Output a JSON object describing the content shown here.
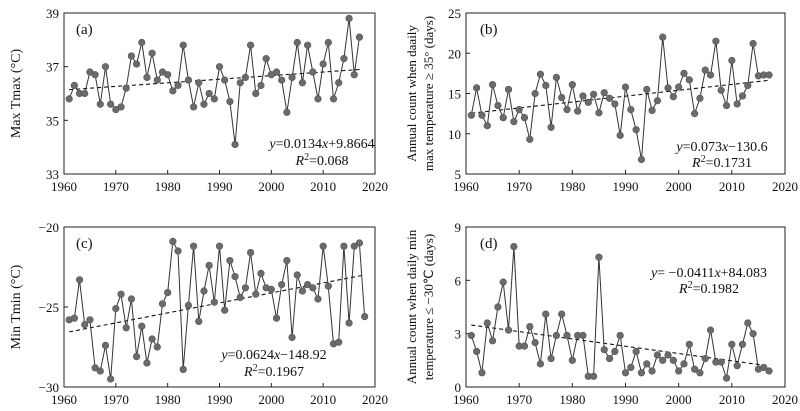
{
  "chart_data": [
    {
      "type": "line",
      "panel": "(a)",
      "ylabel": "Max Tmax (°C)",
      "xlim": [
        1960,
        2020
      ],
      "ylim": [
        33,
        39
      ],
      "xticks": [
        1960,
        1970,
        1980,
        1990,
        2000,
        2010,
        2020
      ],
      "yticks": [
        33,
        35,
        37,
        39
      ],
      "x": [
        1961,
        1962,
        1963,
        1964,
        1965,
        1966,
        1967,
        1968,
        1969,
        1970,
        1971,
        1972,
        1973,
        1974,
        1975,
        1976,
        1977,
        1978,
        1979,
        1980,
        1981,
        1982,
        1983,
        1984,
        1985,
        1986,
        1987,
        1988,
        1989,
        1990,
        1991,
        1992,
        1993,
        1994,
        1995,
        1996,
        1997,
        1998,
        1999,
        2000,
        2001,
        2002,
        2003,
        2004,
        2005,
        2006,
        2007,
        2008,
        2009,
        2010,
        2011,
        2012,
        2013,
        2014,
        2015,
        2016,
        2017
      ],
      "y": [
        35.8,
        36.3,
        36.0,
        36.0,
        36.8,
        36.7,
        35.6,
        37.0,
        35.6,
        35.4,
        35.5,
        36.2,
        37.4,
        37.1,
        37.9,
        36.6,
        37.5,
        36.5,
        36.8,
        36.7,
        36.1,
        36.3,
        37.8,
        36.5,
        35.5,
        36.4,
        35.6,
        36.0,
        35.8,
        37.0,
        36.5,
        35.7,
        34.1,
        36.4,
        36.6,
        37.8,
        36.0,
        36.3,
        37.3,
        36.7,
        36.8,
        36.5,
        35.3,
        36.6,
        37.9,
        36.4,
        37.8,
        36.8,
        35.8,
        37.1,
        37.9,
        35.8,
        36.4,
        37.3,
        38.8,
        36.7,
        38.1
      ],
      "trend": {
        "slope": 0.0134,
        "intercept": 9.8664
      },
      "equation_text": "y=0.0134x+9.8664",
      "r2_text": "R²=0.068"
    },
    {
      "type": "line",
      "panel": "(b)",
      "ylabel_line1": "Annual count when daaily",
      "ylabel_line2": "max temperature ≥ 35° (days)",
      "xlim": [
        1960,
        2020
      ],
      "ylim": [
        5,
        25
      ],
      "xticks": [
        1960,
        1970,
        1980,
        1990,
        2000,
        2010,
        2020
      ],
      "yticks": [
        5,
        10,
        15,
        20,
        25
      ],
      "x": [
        1961,
        1962,
        1963,
        1964,
        1965,
        1966,
        1967,
        1968,
        1969,
        1970,
        1971,
        1972,
        1973,
        1974,
        1975,
        1976,
        1977,
        1978,
        1979,
        1980,
        1981,
        1982,
        1983,
        1984,
        1985,
        1986,
        1987,
        1988,
        1989,
        1990,
        1991,
        1992,
        1993,
        1994,
        1995,
        1996,
        1997,
        1998,
        1999,
        2000,
        2001,
        2002,
        2003,
        2004,
        2005,
        2006,
        2007,
        2008,
        2009,
        2010,
        2011,
        2012,
        2013,
        2014,
        2015,
        2016,
        2017
      ],
      "y": [
        12.3,
        15.7,
        12.3,
        11.0,
        16.1,
        13.5,
        12.0,
        15.5,
        11.5,
        13.0,
        12.0,
        9.3,
        15.0,
        17.4,
        16.0,
        10.8,
        17.0,
        14.5,
        13.0,
        16.1,
        12.8,
        14.7,
        13.9,
        14.9,
        12.6,
        15.1,
        14.4,
        13.7,
        9.8,
        15.8,
        13.0,
        10.5,
        6.8,
        15.5,
        12.9,
        14.1,
        22.0,
        15.7,
        14.6,
        15.8,
        17.5,
        16.7,
        12.5,
        14.4,
        17.9,
        17.3,
        21.5,
        15.4,
        13.5,
        19.1,
        13.7,
        14.7,
        16.0,
        21.2,
        17.2,
        17.3,
        17.3
      ],
      "trend": {
        "slope": 0.073,
        "intercept": -130.6
      },
      "equation_text": "y=0.073x−130.6",
      "r2_text": "R²=0.1731"
    },
    {
      "type": "line",
      "panel": "(c)",
      "ylabel": "Min Tmin (°C)",
      "xlim": [
        1960,
        2020
      ],
      "ylim": [
        -30,
        -20
      ],
      "xticks": [
        1960,
        1970,
        1980,
        1990,
        2000,
        2010,
        2020
      ],
      "yticks": [
        -30,
        -25,
        -20
      ],
      "ytick_labels": [
        "−30",
        "−25",
        "−20"
      ],
      "x": [
        1961,
        1962,
        1963,
        1964,
        1965,
        1966,
        1967,
        1968,
        1969,
        1970,
        1971,
        1972,
        1973,
        1974,
        1975,
        1976,
        1977,
        1978,
        1979,
        1980,
        1981,
        1982,
        1983,
        1984,
        1985,
        1986,
        1987,
        1988,
        1989,
        1990,
        1991,
        1992,
        1993,
        1994,
        1995,
        1996,
        1997,
        1998,
        1999,
        2000,
        2001,
        2002,
        2003,
        2004,
        2005,
        2006,
        2007,
        2008,
        2009,
        2010,
        2011,
        2012,
        2013,
        2014,
        2015,
        2016,
        2017,
        2018
      ],
      "y": [
        -25.8,
        -25.7,
        -23.3,
        -26.1,
        -25.8,
        -28.8,
        -29.0,
        -27.4,
        -29.5,
        -25.1,
        -24.2,
        -26.3,
        -24.5,
        -28.1,
        -26.2,
        -28.5,
        -27.0,
        -27.5,
        -24.8,
        -24.1,
        -20.9,
        -21.5,
        -28.9,
        -24.9,
        -21.2,
        -25.9,
        -24.0,
        -22.4,
        -24.7,
        -21.2,
        -25.2,
        -22.1,
        -23.1,
        -24.4,
        -23.8,
        -21.6,
        -24.2,
        -22.9,
        -23.8,
        -23.9,
        -25.7,
        -23.6,
        -22.1,
        -26.9,
        -23.0,
        -24.0,
        -23.6,
        -23.8,
        -24.5,
        -21.2,
        -23.7,
        -27.3,
        -27.2,
        -21.2,
        -26.0,
        -21.2,
        -21.0,
        -25.6
      ],
      "trend": {
        "slope": 0.0624,
        "intercept": -148.92
      },
      "equation_text": "y=0.0624x−148.92",
      "r2_text": "R²=0.1967"
    },
    {
      "type": "line",
      "panel": "(d)",
      "ylabel_line1": "Annual count when daily min",
      "ylabel_line2": "temperature ≤ −30℃ (days)",
      "xlim": [
        1960,
        2020
      ],
      "ylim": [
        0,
        9
      ],
      "xticks": [
        1960,
        1970,
        1980,
        1990,
        2000,
        2010,
        2020
      ],
      "yticks": [
        0,
        3,
        6,
        9
      ],
      "x": [
        1961,
        1962,
        1963,
        1964,
        1965,
        1966,
        1967,
        1968,
        1969,
        1970,
        1971,
        1972,
        1973,
        1974,
        1975,
        1976,
        1977,
        1978,
        1979,
        1980,
        1981,
        1982,
        1983,
        1984,
        1985,
        1986,
        1987,
        1988,
        1989,
        1990,
        1991,
        1992,
        1993,
        1994,
        1995,
        1996,
        1997,
        1998,
        1999,
        2000,
        2001,
        2002,
        2003,
        2004,
        2005,
        2006,
        2007,
        2008,
        2009,
        2010,
        2011,
        2012,
        2013,
        2014,
        2015,
        2016,
        2017
      ],
      "y": [
        2.9,
        2.0,
        0.8,
        3.6,
        2.6,
        4.5,
        5.9,
        3.2,
        7.9,
        2.3,
        2.3,
        3.4,
        2.5,
        1.3,
        4.1,
        1.6,
        2.9,
        4.1,
        2.9,
        1.5,
        2.9,
        2.9,
        0.6,
        0.6,
        7.3,
        2.1,
        1.6,
        2.0,
        2.9,
        0.8,
        1.1,
        2.0,
        0.8,
        1.3,
        0.9,
        1.8,
        1.5,
        1.8,
        1.5,
        0.9,
        1.3,
        2.4,
        1.0,
        0.8,
        1.6,
        3.2,
        1.4,
        1.4,
        0.5,
        2.4,
        1.2,
        2.4,
        3.6,
        3.0,
        1.0,
        1.1,
        0.9
      ],
      "trend": {
        "slope": -0.0411,
        "intercept": 84.083
      },
      "equation_text": "y= −0.0411x+84.083",
      "r2_text": "R²=0.1982"
    }
  ]
}
